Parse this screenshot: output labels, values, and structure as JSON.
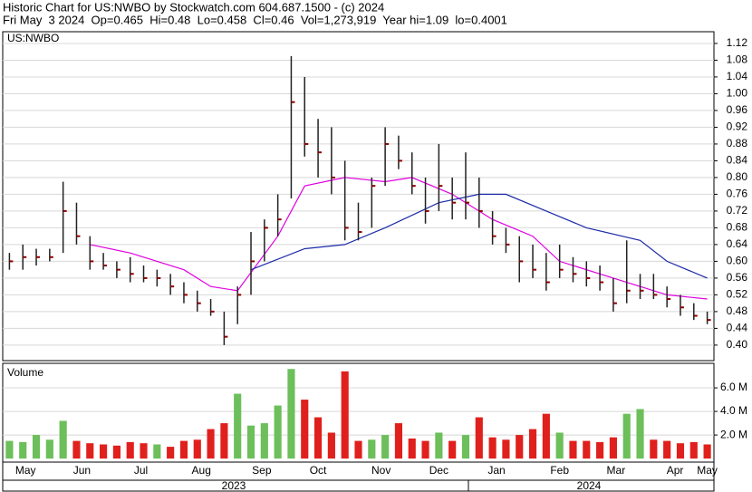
{
  "chart_data": [
    {
      "type": "ohlc",
      "title": "Historic Chart for US:NWBO by Stockwatch.com 604.687.1500 - (c) 2024",
      "subtitle": "Fri May  3 2024  Op=0.465  Hi=0.48  Lo=0.458  Cl=0.46  Vol=1,273,919  Year hi=1.09  lo=0.4001",
      "panel_label": "US:NWBO",
      "xlim": [
        -0.5,
        52.5
      ],
      "ylim": [
        0.363,
        1.148
      ],
      "yticks": [
        {
          "value": 0.4,
          "label": "0.40"
        },
        0.44,
        0.48,
        0.52,
        0.56,
        {
          "value": 0.6,
          "label": "0.60"
        },
        0.64,
        0.68,
        0.72,
        0.76,
        {
          "value": 0.8,
          "label": "0.80"
        },
        0.84,
        0.88,
        0.92,
        0.96,
        {
          "value": 1.0,
          "label": "1.00"
        },
        1.04,
        1.08,
        1.12
      ],
      "grid": true,
      "high": [
        0.62,
        0.64,
        0.63,
        0.63,
        0.79,
        0.74,
        0.66,
        0.62,
        0.6,
        0.61,
        0.59,
        0.58,
        0.57,
        0.55,
        0.53,
        0.51,
        0.48,
        0.54,
        0.67,
        0.7,
        0.76,
        1.09,
        1.04,
        0.94,
        0.92,
        0.84,
        0.74,
        0.8,
        0.92,
        0.9,
        0.86,
        0.8,
        0.88,
        0.8,
        0.86,
        0.8,
        0.72,
        0.68,
        0.66,
        0.64,
        0.62,
        0.64,
        0.61,
        0.6,
        0.59,
        0.56,
        0.65,
        0.57,
        0.57,
        0.54,
        0.52,
        0.5,
        0.48
      ],
      "low": [
        0.58,
        0.58,
        0.59,
        0.6,
        0.62,
        0.64,
        0.58,
        0.58,
        0.56,
        0.55,
        0.55,
        0.54,
        0.52,
        0.5,
        0.48,
        0.47,
        0.4,
        0.45,
        0.52,
        0.6,
        0.66,
        0.75,
        0.85,
        0.8,
        0.76,
        0.65,
        0.65,
        0.68,
        0.78,
        0.82,
        0.76,
        0.69,
        0.72,
        0.7,
        0.7,
        0.68,
        0.64,
        0.62,
        0.55,
        0.56,
        0.53,
        0.56,
        0.55,
        0.54,
        0.53,
        0.48,
        0.5,
        0.51,
        0.51,
        0.49,
        0.47,
        0.46,
        0.45
      ],
      "close": [
        0.6,
        0.61,
        0.61,
        0.61,
        0.72,
        0.66,
        0.6,
        0.59,
        0.58,
        0.57,
        0.56,
        0.56,
        0.54,
        0.52,
        0.5,
        0.48,
        0.42,
        0.52,
        0.6,
        0.68,
        0.7,
        0.98,
        0.88,
        0.86,
        0.8,
        0.68,
        0.67,
        0.78,
        0.88,
        0.84,
        0.78,
        0.72,
        0.78,
        0.74,
        0.74,
        0.72,
        0.66,
        0.64,
        0.6,
        0.58,
        0.55,
        0.58,
        0.57,
        0.56,
        0.55,
        0.5,
        0.53,
        0.53,
        0.52,
        0.51,
        0.49,
        0.47,
        0.46
      ],
      "bar_color": "#8b0000",
      "series": [
        {
          "color": "#e000e0",
          "x": [
            6,
            9,
            13,
            15,
            17,
            20,
            22,
            25,
            28,
            30,
            33,
            36,
            39,
            41,
            44,
            47,
            49,
            52
          ],
          "values": [
            0.64,
            0.62,
            0.58,
            0.54,
            0.53,
            0.66,
            0.78,
            0.8,
            0.79,
            0.8,
            0.76,
            0.7,
            0.66,
            0.6,
            0.57,
            0.54,
            0.52,
            0.51
          ]
        },
        {
          "color": "#1c2aa8",
          "x": [
            18,
            22,
            25,
            28,
            32,
            35,
            37,
            40,
            43,
            47,
            49,
            52
          ],
          "values": [
            0.58,
            0.63,
            0.64,
            0.68,
            0.74,
            0.76,
            0.76,
            0.72,
            0.68,
            0.65,
            0.6,
            0.56
          ]
        }
      ]
    },
    {
      "type": "bar",
      "panel_label": "Volume",
      "xlim": [
        -0.5,
        52.5
      ],
      "ylim": [
        -0.3,
        8.08
      ],
      "yticks": [
        {
          "value": 2,
          "label": "2.0 M"
        },
        {
          "value": 4,
          "label": "4.0 M"
        },
        {
          "value": 6,
          "label": "6.0 M"
        }
      ],
      "values": [
        1.5,
        1.4,
        2.0,
        1.6,
        3.2,
        1.5,
        1.3,
        1.2,
        1.1,
        1.4,
        1.3,
        1.2,
        1.0,
        1.5,
        1.6,
        2.5,
        3.0,
        5.5,
        2.8,
        3.0,
        4.5,
        7.6,
        5.0,
        3.5,
        2.2,
        7.4,
        1.5,
        1.6,
        2.0,
        3.0,
        1.7,
        1.5,
        2.2,
        1.5,
        2.0,
        3.5,
        1.8,
        1.6,
        2.0,
        2.5,
        3.8,
        2.2,
        1.5,
        1.5,
        1.4,
        1.8,
        3.8,
        4.2,
        1.6,
        1.5,
        1.3,
        1.4,
        1.2
      ],
      "up_color": "#6cbf5a",
      "down_color": "#e0201c",
      "xticks": [
        {
          "value": 1.2,
          "label": "May"
        },
        {
          "value": 5.4,
          "label": "Jun"
        },
        {
          "value": 9.8,
          "label": "Jul"
        },
        {
          "value": 14.3,
          "label": "Aug"
        },
        {
          "value": 18.8,
          "label": "Sep"
        },
        {
          "value": 23,
          "label": "Oct"
        },
        {
          "value": 27.7,
          "label": "Nov"
        },
        {
          "value": 32,
          "label": "Dec"
        },
        {
          "value": 36.3,
          "label": "Jan"
        },
        {
          "value": 41,
          "label": "Feb"
        },
        {
          "value": 45.2,
          "label": "Mar"
        },
        {
          "value": 49.6,
          "label": "Apr"
        },
        {
          "value": 52,
          "label": "May"
        }
      ],
      "year_labels": [
        "2023",
        "2024"
      ]
    }
  ]
}
